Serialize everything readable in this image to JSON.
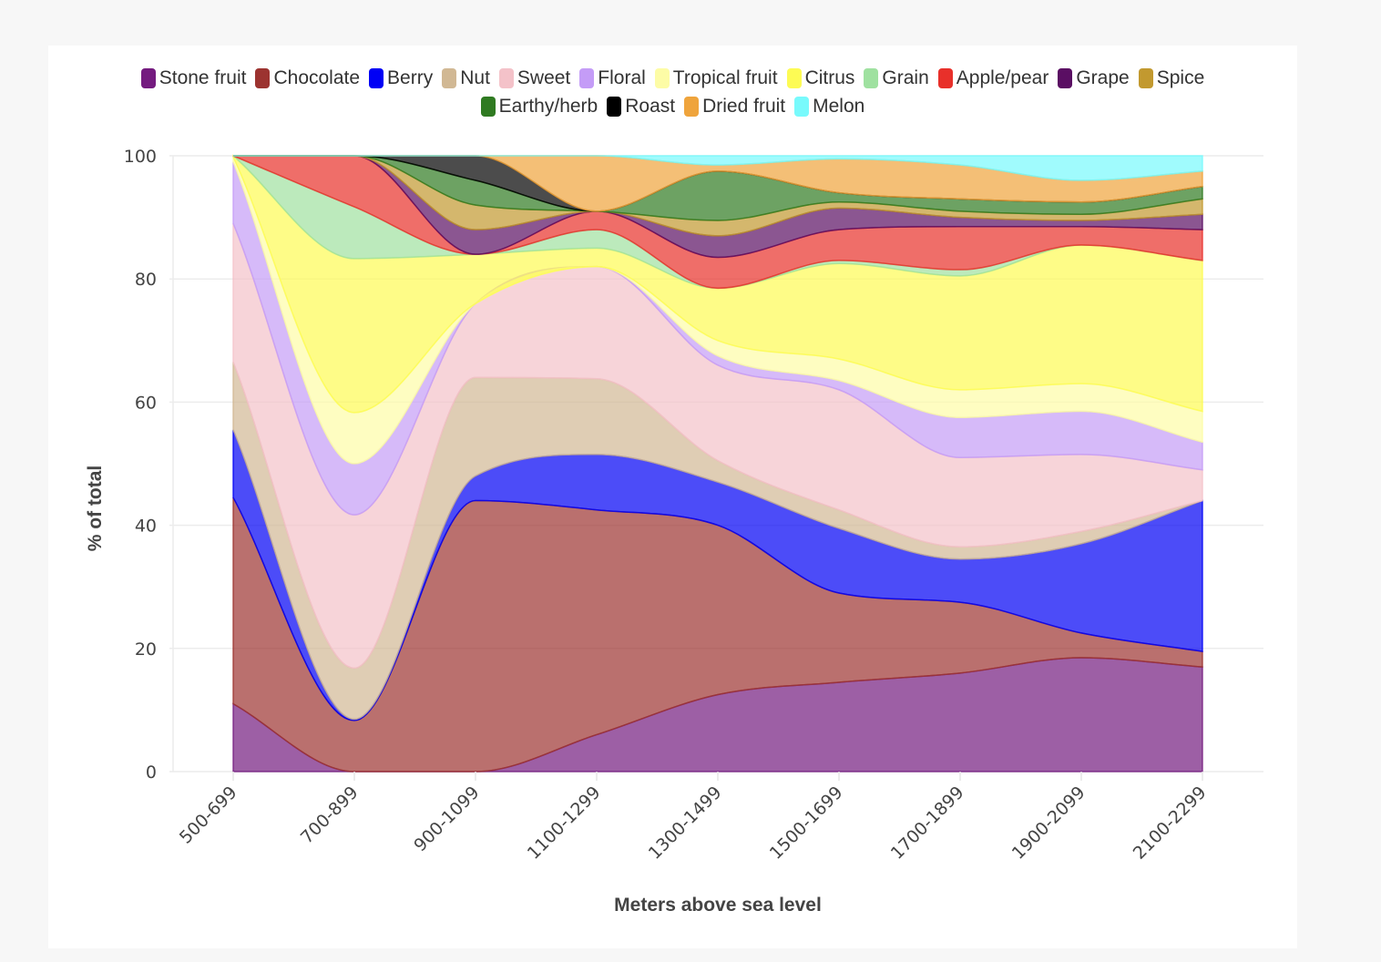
{
  "chart_data": {
    "type": "area",
    "stacked": true,
    "normalized": true,
    "title": "",
    "xlabel": "Meters above sea level",
    "ylabel": "% of total",
    "ylim": [
      0,
      100
    ],
    "yticks": [
      0,
      20,
      40,
      60,
      80,
      100
    ],
    "grid": true,
    "legend_position": "top",
    "categories": [
      "500-699",
      "700-899",
      "900-1099",
      "1100-1299",
      "1300-1499",
      "1500-1699",
      "1700-1899",
      "1900-2099",
      "2100-2299"
    ],
    "series": [
      {
        "name": "Stone fruit",
        "color": "#741b7f",
        "values": [
          11,
          0,
          0,
          6,
          12.5,
          14.5,
          16,
          18.5,
          17
        ]
      },
      {
        "name": "Chocolate",
        "color": "#9c3330",
        "values": [
          33.5,
          8.3,
          44,
          36.5,
          27.5,
          14.5,
          11.5,
          4,
          2.5
        ]
      },
      {
        "name": "Berry",
        "color": "#0000f5",
        "values": [
          11,
          0.2,
          4,
          9,
          7,
          10.5,
          7,
          14.5,
          24.5
        ]
      },
      {
        "name": "Nut",
        "color": "#d1b894",
        "values": [
          11,
          8.3,
          16,
          12.3,
          3.5,
          3,
          2,
          2,
          0
        ]
      },
      {
        "name": "Sweet",
        "color": "#f4c2c9",
        "values": [
          22.5,
          24.9,
          12,
          18.2,
          15.5,
          19.5,
          14.5,
          12.5,
          5
        ]
      },
      {
        "name": "Floral",
        "color": "#c49cf7",
        "values": [
          10,
          8.3,
          0,
          0,
          1.5,
          1.5,
          6.5,
          7,
          4.5
        ]
      },
      {
        "name": "Tropical fruit",
        "color": "#fdfca6",
        "values": [
          0.8,
          8.3,
          0,
          0,
          2.5,
          3.5,
          4.5,
          4.5,
          5
        ]
      },
      {
        "name": "Citrus",
        "color": "#fdfb54",
        "values": [
          0.2,
          25,
          8,
          3,
          8.5,
          15.5,
          18.5,
          22.5,
          24.5
        ]
      },
      {
        "name": "Grain",
        "color": "#9fe1a0",
        "values": [
          0,
          8.4,
          0,
          3,
          0,
          0.5,
          1,
          0,
          0
        ]
      },
      {
        "name": "Apple/pear",
        "color": "#e8302a",
        "values": [
          0,
          8.3,
          0,
          3,
          5,
          5,
          7,
          3,
          5
        ]
      },
      {
        "name": "Grape",
        "color": "#5a0e63",
        "values": [
          0,
          0,
          4,
          0,
          3.5,
          3.5,
          1.5,
          1,
          2.5
        ]
      },
      {
        "name": "Spice",
        "color": "#c2992f",
        "values": [
          0,
          0,
          4,
          0,
          2.5,
          1,
          1,
          1,
          2.5
        ]
      },
      {
        "name": "Earthy/herb",
        "color": "#2f7a21",
        "values": [
          0,
          0,
          4,
          0,
          8,
          1.5,
          2,
          2,
          2
        ]
      },
      {
        "name": "Roast",
        "color": "#000000",
        "values": [
          0,
          0,
          4,
          0,
          0,
          0,
          0,
          0,
          0
        ]
      },
      {
        "name": "Dried fruit",
        "color": "#efa43c",
        "values": [
          0,
          0,
          0,
          9,
          1,
          5.5,
          5.5,
          3.5,
          2.5
        ]
      },
      {
        "name": "Melon",
        "color": "#78fafc",
        "values": [
          0,
          0,
          0,
          0,
          1.5,
          0.5,
          1.5,
          4,
          2.5
        ]
      }
    ]
  }
}
